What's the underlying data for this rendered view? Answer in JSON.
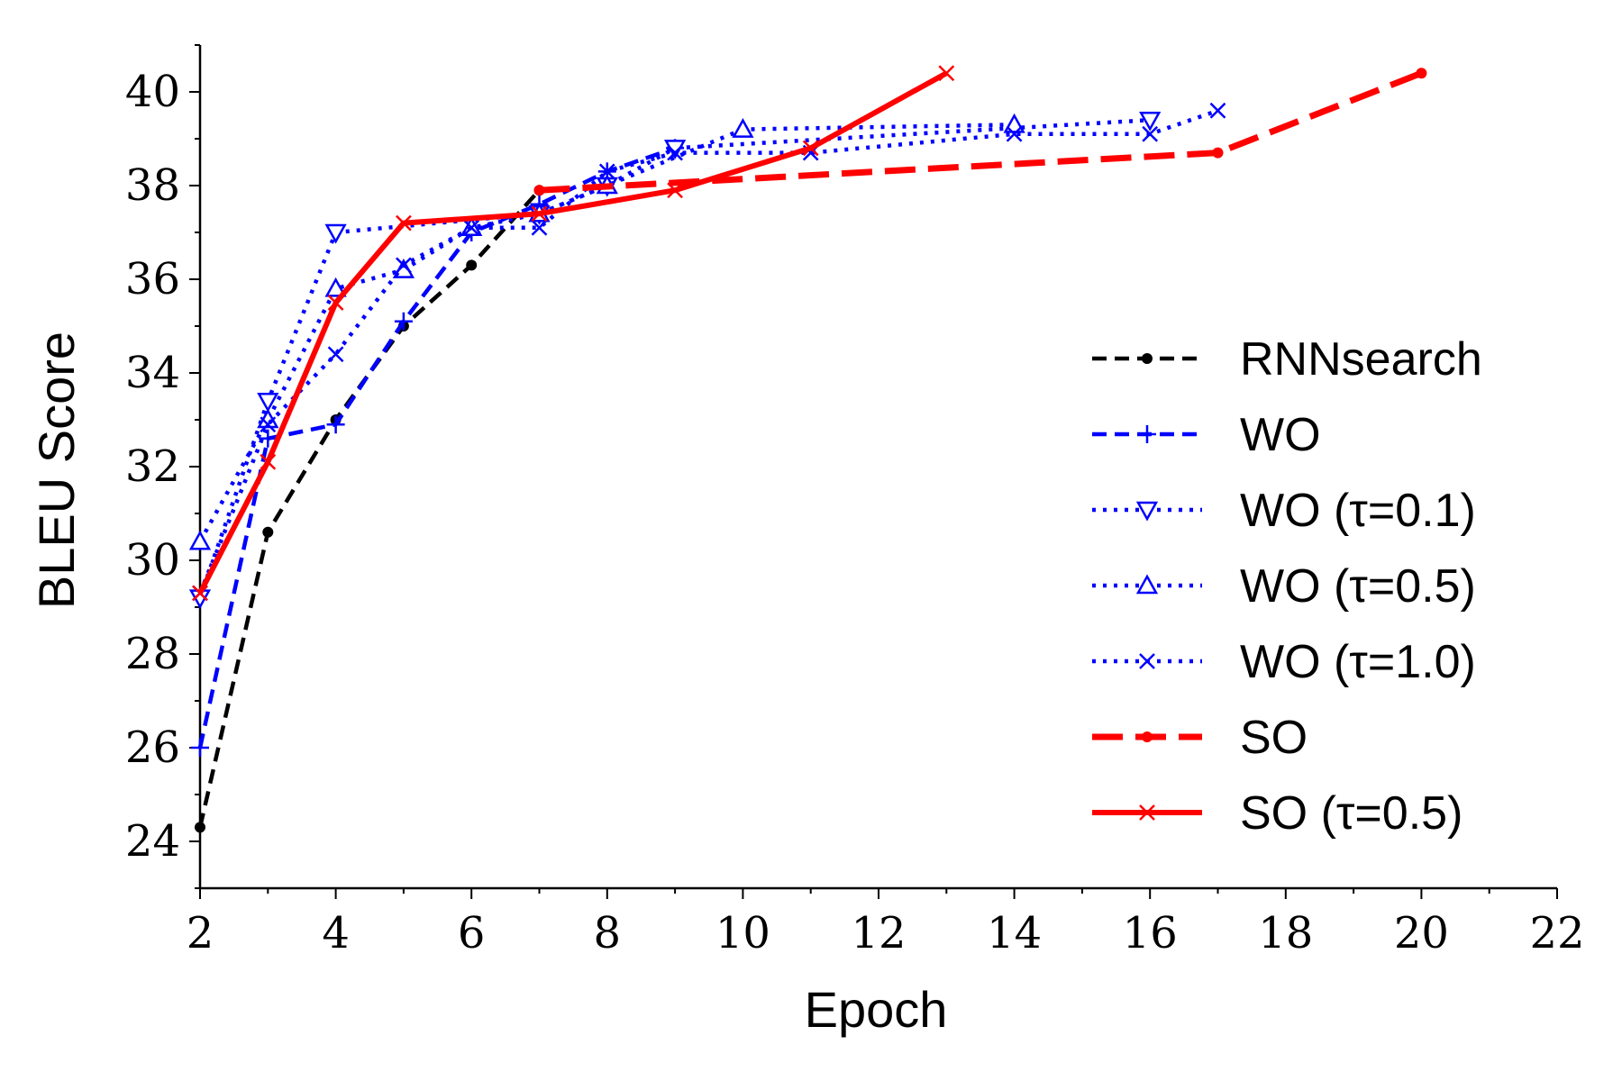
{
  "chart_data": {
    "type": "line",
    "title": "",
    "xlabel": "Epoch",
    "ylabel": "BLEU Score",
    "xlim": [
      2,
      22
    ],
    "ylim": [
      23,
      41
    ],
    "xticks": [
      "2",
      "4",
      "6",
      "8",
      "10",
      "12",
      "14",
      "16",
      "18",
      "20",
      "22"
    ],
    "yticks": [
      "24",
      "26",
      "28",
      "30",
      "32",
      "34",
      "36",
      "38",
      "40"
    ],
    "grid": false,
    "legend_position": "right",
    "series": [
      {
        "name": "RNNsearch",
        "color": "#000000",
        "dash": "dashed",
        "marker": "dot",
        "x": [
          2,
          3,
          4,
          5,
          6,
          7
        ],
        "y": [
          24.3,
          30.6,
          33.0,
          35.0,
          36.3,
          37.9
        ]
      },
      {
        "name": "WO",
        "color": "#0000ff",
        "dash": "dashed",
        "marker": "plus",
        "x": [
          2,
          3,
          4,
          5,
          6,
          7,
          8,
          9
        ],
        "y": [
          26.0,
          32.6,
          32.9,
          35.1,
          37.0,
          37.6,
          38.3,
          38.8
        ]
      },
      {
        "name": "WO (τ=0.1)",
        "color": "#0000ff",
        "dash": "dotted",
        "marker": "triangle-down",
        "x": [
          2,
          3,
          4,
          7,
          8,
          9,
          16
        ],
        "y": [
          29.2,
          33.4,
          37.0,
          37.4,
          38.0,
          38.8,
          39.4
        ]
      },
      {
        "name": "WO (τ=0.5)",
        "color": "#0000ff",
        "dash": "dotted",
        "marker": "triangle-up",
        "x": [
          2,
          3,
          4,
          5,
          6,
          7,
          8,
          10,
          14
        ],
        "y": [
          30.4,
          33.0,
          35.8,
          36.2,
          37.1,
          37.4,
          38.0,
          39.2,
          39.3
        ]
      },
      {
        "name": "WO (τ=1.0)",
        "color": "#0000ff",
        "dash": "dotted",
        "marker": "x",
        "x": [
          2,
          3,
          4,
          5,
          6,
          7,
          8,
          9,
          11,
          14,
          16,
          17
        ],
        "y": [
          29.3,
          32.9,
          34.4,
          36.3,
          37.1,
          37.1,
          38.3,
          38.7,
          38.7,
          39.1,
          39.1,
          39.6
        ]
      },
      {
        "name": "SO",
        "color": "#ff0000",
        "dash": "long-dashed",
        "marker": "dot",
        "x": [
          7,
          17,
          20
        ],
        "y": [
          37.9,
          38.7,
          40.4
        ]
      },
      {
        "name": "SO (τ=0.5)",
        "color": "#ff0000",
        "dash": "solid",
        "marker": "x",
        "x": [
          2,
          3,
          4,
          5,
          7,
          9,
          11,
          13
        ],
        "y": [
          29.3,
          32.1,
          35.5,
          37.2,
          37.4,
          37.9,
          38.8,
          40.4
        ]
      }
    ]
  }
}
